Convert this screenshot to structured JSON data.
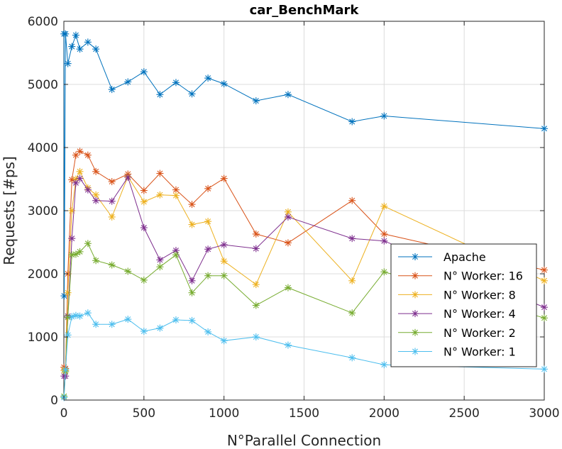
{
  "chart_data": {
    "type": "line",
    "title": "car_BenchMark",
    "xlabel": "N°Parallel Connection",
    "ylabel": "Requests [#ps]",
    "xlim": [
      0,
      3000
    ],
    "ylim": [
      0,
      6000
    ],
    "xticks": [
      "0",
      "500",
      "1000",
      "1500",
      "2000",
      "2500",
      "3000"
    ],
    "yticks": [
      "0",
      "1000",
      "2000",
      "3000",
      "4000",
      "5000",
      "6000"
    ],
    "grid": true,
    "legend_position": "bottom-right",
    "marker": "asterisk",
    "series": [
      {
        "name": "Apache",
        "color": "#0072BD",
        "points": [
          [
            1,
            5800
          ],
          [
            2,
            1650
          ],
          [
            10,
            5800
          ],
          [
            25,
            5330
          ],
          [
            50,
            5600
          ],
          [
            75,
            5780
          ],
          [
            100,
            5560
          ],
          [
            150,
            5670
          ],
          [
            200,
            5560
          ],
          [
            300,
            4920
          ],
          [
            400,
            5040
          ],
          [
            500,
            5200
          ],
          [
            600,
            4840
          ],
          [
            700,
            5030
          ],
          [
            800,
            4850
          ],
          [
            900,
            5100
          ],
          [
            1000,
            5010
          ],
          [
            1200,
            4740
          ],
          [
            1400,
            4840
          ],
          [
            1800,
            4410
          ],
          [
            2000,
            4500
          ],
          [
            3000,
            4300
          ]
        ]
      },
      {
        "name": "N° Worker: 16",
        "color": "#D95319",
        "points": [
          [
            1,
            520
          ],
          [
            10,
            500
          ],
          [
            25,
            2000
          ],
          [
            50,
            3490
          ],
          [
            75,
            3880
          ],
          [
            100,
            3940
          ],
          [
            150,
            3880
          ],
          [
            200,
            3620
          ],
          [
            300,
            3460
          ],
          [
            400,
            3580
          ],
          [
            500,
            3320
          ],
          [
            600,
            3590
          ],
          [
            700,
            3330
          ],
          [
            800,
            3100
          ],
          [
            900,
            3350
          ],
          [
            1000,
            3510
          ],
          [
            1200,
            2630
          ],
          [
            1400,
            2490
          ],
          [
            1800,
            3160
          ],
          [
            2000,
            2630
          ],
          [
            3000,
            2060
          ]
        ]
      },
      {
        "name": "N° Worker: 8",
        "color": "#EDB120",
        "points": [
          [
            1,
            470
          ],
          [
            10,
            470
          ],
          [
            25,
            1700
          ],
          [
            50,
            3000
          ],
          [
            75,
            3500
          ],
          [
            100,
            3620
          ],
          [
            150,
            3360
          ],
          [
            200,
            3250
          ],
          [
            300,
            2900
          ],
          [
            400,
            3540
          ],
          [
            500,
            3140
          ],
          [
            600,
            3250
          ],
          [
            700,
            3240
          ],
          [
            800,
            2780
          ],
          [
            900,
            2830
          ],
          [
            1000,
            2200
          ],
          [
            1200,
            1830
          ],
          [
            1400,
            2980
          ],
          [
            1800,
            1890
          ],
          [
            2000,
            3070
          ],
          [
            3000,
            1890
          ]
        ]
      },
      {
        "name": "N° Worker: 4",
        "color": "#7E2F8E",
        "points": [
          [
            1,
            380
          ],
          [
            10,
            380
          ],
          [
            25,
            1330
          ],
          [
            50,
            2560
          ],
          [
            75,
            3440
          ],
          [
            100,
            3510
          ],
          [
            150,
            3330
          ],
          [
            200,
            3160
          ],
          [
            300,
            3150
          ],
          [
            400,
            3530
          ],
          [
            500,
            2730
          ],
          [
            600,
            2220
          ],
          [
            700,
            2370
          ],
          [
            800,
            1890
          ],
          [
            900,
            2390
          ],
          [
            1000,
            2460
          ],
          [
            1200,
            2400
          ],
          [
            1400,
            2900
          ],
          [
            1800,
            2560
          ],
          [
            2000,
            2520
          ],
          [
            3000,
            1470
          ]
        ]
      },
      {
        "name": "N° Worker: 2",
        "color": "#77AC30",
        "points": [
          [
            1,
            60
          ],
          [
            10,
            450
          ],
          [
            25,
            1310
          ],
          [
            50,
            2300
          ],
          [
            75,
            2310
          ],
          [
            100,
            2350
          ],
          [
            150,
            2480
          ],
          [
            200,
            2210
          ],
          [
            300,
            2140
          ],
          [
            400,
            2040
          ],
          [
            500,
            1900
          ],
          [
            600,
            2110
          ],
          [
            700,
            2300
          ],
          [
            800,
            1700
          ],
          [
            900,
            1970
          ],
          [
            1000,
            1970
          ],
          [
            1200,
            1500
          ],
          [
            1400,
            1780
          ],
          [
            1800,
            1380
          ],
          [
            2000,
            2030
          ],
          [
            3000,
            1300
          ]
        ]
      },
      {
        "name": "N° Worker: 1",
        "color": "#4DBEEE",
        "points": [
          [
            1,
            40
          ],
          [
            10,
            480
          ],
          [
            25,
            1030
          ],
          [
            50,
            1320
          ],
          [
            75,
            1340
          ],
          [
            100,
            1330
          ],
          [
            150,
            1380
          ],
          [
            200,
            1200
          ],
          [
            300,
            1200
          ],
          [
            400,
            1280
          ],
          [
            500,
            1090
          ],
          [
            600,
            1140
          ],
          [
            700,
            1270
          ],
          [
            800,
            1260
          ],
          [
            900,
            1080
          ],
          [
            1000,
            940
          ],
          [
            1200,
            1000
          ],
          [
            1400,
            870
          ],
          [
            1800,
            670
          ],
          [
            2000,
            560
          ],
          [
            3000,
            490
          ]
        ]
      }
    ]
  }
}
